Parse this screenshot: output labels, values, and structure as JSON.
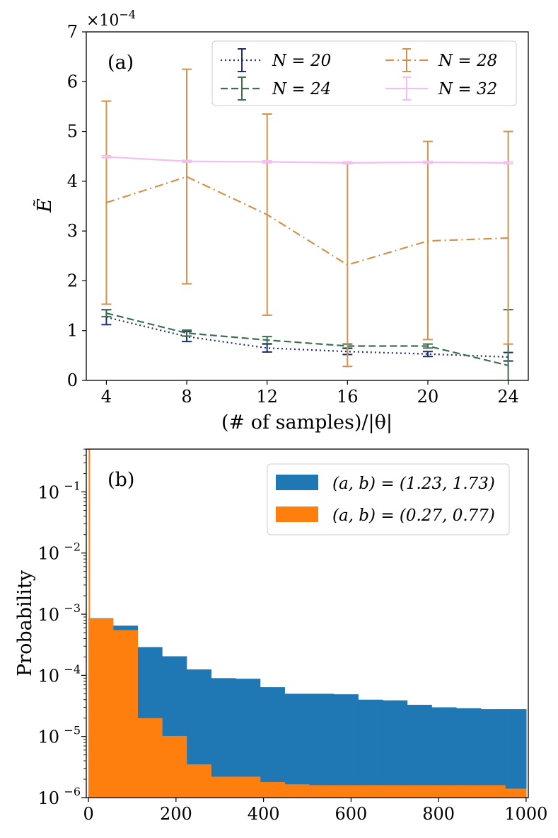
{
  "chart_data": [
    {
      "panel_label": "(a)",
      "type": "line",
      "title": "",
      "xlabel": "(# of samples)/|θ|",
      "ylabel": "Ẽ",
      "y_multiplier": "×10",
      "y_multiplier_exp": "−4",
      "xlim": [
        3.0,
        25.0
      ],
      "ylim": [
        0,
        7
      ],
      "x_ticks": [
        4,
        8,
        12,
        16,
        20,
        24
      ],
      "x_tick_labels": [
        "4",
        "8",
        "12",
        "16",
        "20",
        "24"
      ],
      "y_ticks": [
        0,
        1,
        2,
        3,
        4,
        5,
        6,
        7
      ],
      "y_tick_labels": [
        "0",
        "1",
        "2",
        "3",
        "4",
        "5",
        "6",
        "7"
      ],
      "legend_position": "top-right",
      "series": [
        {
          "name": "N = 20",
          "legend_label": "N = 20",
          "color": "#1f2f6b",
          "dash": "dotted",
          "x": [
            4,
            8,
            12,
            16,
            20,
            24
          ],
          "y": [
            1.27,
            0.88,
            0.65,
            0.58,
            0.53,
            0.47
          ],
          "err_low": [
            1.12,
            0.78,
            0.57,
            0.52,
            0.48,
            0.39
          ],
          "err_high": [
            1.42,
            0.98,
            0.73,
            0.64,
            0.58,
            0.56
          ]
        },
        {
          "name": "N = 24",
          "legend_label": "N = 24",
          "color": "#3c6e50",
          "dash": "dashed",
          "x": [
            4,
            8,
            12,
            16,
            20,
            24
          ],
          "y": [
            1.35,
            0.95,
            0.81,
            0.69,
            0.69,
            0.3
          ],
          "err_low": [
            1.28,
            0.89,
            0.74,
            0.65,
            0.65,
            -0.55
          ],
          "err_high": [
            1.42,
            1.01,
            0.88,
            0.73,
            0.73,
            1.42
          ]
        },
        {
          "name": "N = 28",
          "legend_label": "N = 28",
          "color": "#d4924a",
          "dash": "dashdot",
          "x": [
            4,
            8,
            12,
            16,
            20,
            24
          ],
          "y": [
            3.57,
            4.09,
            3.33,
            2.32,
            2.8,
            2.86
          ],
          "err_low": [
            1.53,
            1.94,
            1.31,
            0.28,
            0.82,
            0.73
          ],
          "err_high": [
            5.61,
            6.25,
            5.35,
            4.36,
            4.8,
            5.0
          ]
        },
        {
          "name": "N = 32",
          "legend_label": "N = 32",
          "color": "#f2bff0",
          "dash": "solid",
          "x": [
            4,
            8,
            12,
            16,
            20,
            24
          ],
          "y": [
            4.49,
            4.4,
            4.39,
            4.37,
            4.38,
            4.37
          ],
          "err_low": [
            4.47,
            4.38,
            4.37,
            4.35,
            4.36,
            4.35
          ],
          "err_high": [
            4.51,
            4.42,
            4.41,
            4.39,
            4.4,
            4.39
          ]
        }
      ]
    },
    {
      "panel_label": "(b)",
      "type": "histogram",
      "title": "",
      "xlabel": "",
      "ylabel": "Probability",
      "y_scale": "log",
      "xlim": [
        -5,
        1005
      ],
      "ylim_log10": [
        -6,
        -0.3
      ],
      "x_ticks": [
        0,
        200,
        400,
        600,
        800,
        1000
      ],
      "x_tick_labels": [
        "0",
        "200",
        "400",
        "600",
        "800",
        "1000"
      ],
      "y_ticks_log10": [
        -6,
        -5,
        -4,
        -3,
        -2,
        -1
      ],
      "y_tick_base": "10",
      "y_tick_exponents": [
        "−6",
        "−5",
        "−4",
        "−3",
        "−2",
        "−1"
      ],
      "legend_position": "top-right",
      "bin_edges": [
        0,
        56,
        112,
        168,
        224,
        280,
        336,
        392,
        448,
        504,
        560,
        616,
        672,
        728,
        784,
        840,
        896,
        952,
        1000
      ],
      "series": [
        {
          "name": "(a, b) = (1.23, 1.73)",
          "legend_label": "(a, b) = (1.23, 1.73)",
          "color": "#1f77b4",
          "values": [
            0.00086,
            0.00065,
            0.00029,
            0.000205,
            0.000125,
            9e-05,
            8.8e-05,
            6.4e-05,
            5e-05,
            5e-05,
            4.9e-05,
            4e-05,
            3.9e-05,
            3.3e-05,
            3e-05,
            2.9e-05,
            2.8e-05,
            2.8e-05
          ]
        },
        {
          "name": "(a, b) = (0.27, 0.77)",
          "legend_label": "(a, b) = (0.27, 0.77)",
          "color": "#ff7f0e",
          "values": [
            0.00085,
            0.00055,
            2e-05,
            1.02e-05,
            3.5e-06,
            2.2e-06,
            2.2e-06,
            1.8e-06,
            1.65e-06,
            1.6e-06,
            1.6e-06,
            1.6e-06,
            1.6e-06,
            1.6e-06,
            1.6e-06,
            1.6e-06,
            1.6e-06,
            1.4e-06
          ]
        }
      ],
      "spike": {
        "x": 2,
        "value": 0.5
      }
    }
  ]
}
